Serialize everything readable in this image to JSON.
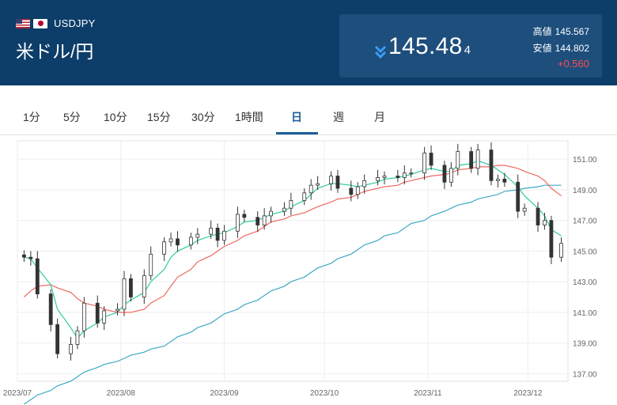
{
  "header": {
    "flags": [
      "us-flag-icon",
      "jp-flag-icon"
    ],
    "pair_code": "USDJPY",
    "pair_name": "米ドル/円",
    "price_main": "145.48",
    "price_small": "4",
    "high_label": "高値",
    "high_value": "145.567",
    "low_label": "安値",
    "low_value": "144.802",
    "change": "+0.560",
    "direction_icon": "double-chevron-down-icon"
  },
  "tabs": [
    {
      "label": "1分"
    },
    {
      "label": "5分"
    },
    {
      "label": "10分"
    },
    {
      "label": "15分"
    },
    {
      "label": "30分"
    },
    {
      "label": "1時間"
    },
    {
      "label": "日",
      "active": true
    },
    {
      "label": "週"
    },
    {
      "label": "月"
    }
  ],
  "colors": {
    "header_bg": "#0d3d69",
    "quote_box_bg": "#1d4e7c",
    "change_up": "#ff4c4c",
    "active_tab": "#1d5d9b",
    "ma_short": "#2ecba0",
    "ma_mid": "#ee6a5e",
    "ma_long": "#40a8c6"
  },
  "chart_data": {
    "type": "candlestick",
    "x_labels": [
      "2023/07",
      "2023/08",
      "2023/09",
      "2023/10",
      "2023/11",
      "2023/12"
    ],
    "y_ticks": [
      "151.00",
      "149.00",
      "147.00",
      "145.00",
      "143.00",
      "141.00",
      "139.00",
      "137.00"
    ],
    "ylim": [
      136.5,
      152.2
    ],
    "grid": true,
    "x": [
      "2023-07-03",
      "2023-07-05",
      "2023-07-07",
      "2023-07-11",
      "2023-07-13",
      "2023-07-17",
      "2023-07-19",
      "2023-07-21",
      "2023-07-25",
      "2023-07-27",
      "2023-07-31",
      "2023-08-02",
      "2023-08-04",
      "2023-08-08",
      "2023-08-10",
      "2023-08-14",
      "2023-08-16",
      "2023-08-18",
      "2023-08-22",
      "2023-08-24",
      "2023-08-28",
      "2023-08-30",
      "2023-09-01",
      "2023-09-05",
      "2023-09-07",
      "2023-09-11",
      "2023-09-13",
      "2023-09-15",
      "2023-09-19",
      "2023-09-21",
      "2023-09-25",
      "2023-09-27",
      "2023-09-29",
      "2023-10-03",
      "2023-10-05",
      "2023-10-09",
      "2023-10-11",
      "2023-10-13",
      "2023-10-17",
      "2023-10-19",
      "2023-10-23",
      "2023-10-25",
      "2023-10-27",
      "2023-10-31",
      "2023-11-02",
      "2023-11-06",
      "2023-11-08",
      "2023-11-10",
      "2023-11-14",
      "2023-11-16",
      "2023-11-20",
      "2023-11-22",
      "2023-11-24",
      "2023-11-28",
      "2023-11-30",
      "2023-12-04",
      "2023-12-06",
      "2023-12-08",
      "2023-12-11"
    ],
    "close": [
      144.6,
      144.5,
      142.2,
      140.2,
      138.3,
      138.9,
      139.8,
      141.6,
      140.3,
      141.1,
      141.2,
      143.2,
      142.0,
      143.4,
      144.8,
      145.6,
      145.8,
      145.4,
      145.9,
      146.1,
      146.5,
      145.7,
      146.3,
      147.4,
      147.2,
      146.7,
      147.3,
      147.6,
      147.8,
      148.3,
      148.8,
      149.3,
      149.4,
      149.9,
      149.1,
      148.7,
      149.2,
      149.6,
      149.8,
      149.9,
      149.8,
      150.1,
      150.1,
      151.4,
      150.6,
      149.5,
      150.4,
      151.5,
      150.4,
      151.6,
      149.6,
      149.7,
      149.5,
      147.6,
      147.8,
      146.7,
      147.0,
      144.6,
      145.5
    ],
    "ma_short": [
      144.6,
      144.5,
      143.9,
      142.8,
      141.2,
      140.0,
      139.3,
      139.8,
      140.3,
      140.7,
      141.0,
      141.5,
      141.8,
      142.3,
      143.0,
      143.8,
      144.6,
      145.0,
      145.4,
      145.7,
      146.0,
      146.1,
      146.2,
      146.6,
      146.9,
      147.0,
      147.2,
      147.4,
      147.6,
      147.9,
      148.3,
      148.7,
      149.1,
      149.4,
      149.4,
      149.3,
      149.2,
      149.3,
      149.5,
      149.7,
      149.8,
      149.9,
      150.0,
      150.3,
      150.4,
      150.2,
      150.2,
      150.6,
      150.7,
      150.9,
      150.6,
      150.3,
      150.0,
      149.2,
      148.6,
      147.8,
      147.3,
      146.4,
      146.0
    ],
    "ma_mid": [
      142.0,
      142.4,
      142.7,
      142.8,
      142.6,
      142.3,
      141.9,
      141.6,
      141.4,
      141.2,
      141.0,
      141.0,
      141.0,
      141.2,
      141.6,
      142.1,
      142.7,
      143.3,
      143.8,
      144.3,
      144.7,
      145.0,
      145.3,
      145.7,
      146.0,
      146.3,
      146.6,
      146.9,
      147.1,
      147.3,
      147.5,
      147.7,
      147.9,
      148.2,
      148.4,
      148.5,
      148.7,
      148.9,
      149.1,
      149.2,
      149.3,
      149.5,
      149.6,
      149.8,
      149.9,
      150.0,
      150.1,
      150.3,
      150.4,
      150.5,
      150.5,
      150.6,
      150.6,
      150.4,
      150.2,
      149.9,
      149.6,
      149.1,
      148.6
    ],
    "ma_long": [
      135.0,
      135.3,
      135.6,
      135.9,
      136.2,
      136.5,
      136.8,
      137.1,
      137.4,
      137.6,
      137.8,
      138.0,
      138.2,
      138.4,
      138.6,
      138.8,
      139.1,
      139.4,
      139.7,
      140.0,
      140.3,
      140.6,
      140.9,
      141.2,
      141.5,
      141.8,
      142.1,
      142.4,
      142.7,
      143.0,
      143.3,
      143.6,
      143.9,
      144.2,
      144.5,
      144.8,
      145.1,
      145.4,
      145.7,
      146.0,
      146.2,
      146.5,
      146.8,
      147.0,
      147.3,
      147.6,
      147.8,
      148.0,
      148.2,
      148.4,
      148.6,
      148.7,
      148.9,
      149.0,
      149.1,
      149.2,
      149.3,
      149.3,
      149.3
    ],
    "series": [
      {
        "name": "",
        "values_key": "close"
      },
      {
        "name": "",
        "values_key": "ma_short"
      },
      {
        "name": "",
        "values_key": "ma_mid"
      },
      {
        "name": "",
        "values_key": "ma_long"
      }
    ]
  }
}
